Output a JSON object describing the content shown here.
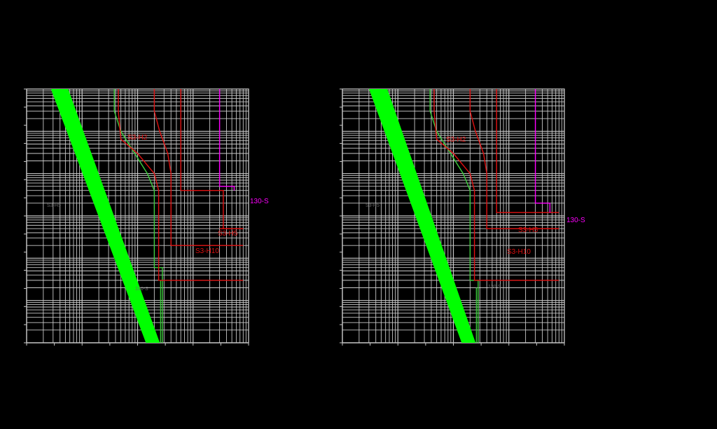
{
  "background": "#000000",
  "grid_color": "#c8c8c8",
  "colors": {
    "band": "#00ff00",
    "green_curve": "#3ccc3c",
    "red_curve": "#e01010",
    "magenta_curve": "#ff00ff"
  },
  "chart_data": [
    {
      "type": "line",
      "title": "",
      "xlabel": "",
      "ylabel": "",
      "x_scale": "log",
      "y_scale": "log",
      "xlim": [
        1,
        10000
      ],
      "ylim": [
        0.01,
        10000
      ],
      "grid": true,
      "band": {
        "name": "",
        "upper": [
          [
            2.74,
            10000
          ],
          [
            141,
            0.01
          ]
        ],
        "lower": [
          [
            5.62,
            10000
          ],
          [
            251,
            0.01
          ]
        ]
      },
      "series": [
        {
          "name": "",
          "color": "green",
          "points": [
            [
              38,
              10000
            ],
            [
              38,
              3000
            ],
            [
              50,
              1000
            ],
            [
              150,
              100
            ],
            [
              200,
              40
            ],
            [
              200,
              0.6
            ],
            [
              280,
              0.6
            ],
            [
              280,
              0.01
            ]
          ]
        },
        {
          "name": "",
          "color": "green",
          "points": [
            [
              260,
              0.3
            ],
            [
              260,
              0.01
            ]
          ]
        },
        {
          "name": "S3-H2",
          "color": "red",
          "points": [
            [
              45,
              10000
            ],
            [
              45,
              3000
            ],
            [
              50,
              650
            ],
            [
              100,
              300
            ],
            [
              200,
              100
            ],
            [
              240,
              40
            ],
            [
              240,
              0.3
            ],
            [
              8000,
              0.3
            ]
          ]
        },
        {
          "name": "",
          "color": "red",
          "points": [
            [
              200,
              10000
            ],
            [
              200,
              3000
            ],
            [
              250,
              1000
            ],
            [
              350,
              300
            ],
            [
              400,
              100
            ],
            [
              400,
              2
            ],
            [
              8000,
              2
            ]
          ]
        },
        {
          "name": "S3-H10",
          "color": "red",
          "points": [
            [
              600,
              10000
            ],
            [
              600,
              40
            ],
            [
              3500,
              40
            ],
            [
              3500,
              5
            ],
            [
              8000,
              5
            ]
          ]
        },
        {
          "name": "S3-H5",
          "color": "red",
          "points": [
            [
              3000,
              5
            ],
            [
              8000,
              5
            ]
          ]
        },
        {
          "name": "130-S",
          "color": "magenta",
          "points": [
            [
              3000,
              10000
            ],
            [
              3000,
              50
            ],
            [
              5500,
              50
            ],
            [
              5500,
              40
            ]
          ]
        }
      ],
      "labels": {
        "s3h2": "S3-H2",
        "s3h5": "S3-H5",
        "s3h10": "S3-H10",
        "m130s": "130-S"
      },
      "faint_labels": [
        "S3-H5",
        "130-S"
      ]
    },
    {
      "type": "line",
      "title": "",
      "xlabel": "",
      "ylabel": "",
      "x_scale": "log",
      "y_scale": "log",
      "xlim": [
        1,
        10000
      ],
      "ylim": [
        0.01,
        10000
      ],
      "grid": true,
      "band": {
        "name": "",
        "upper": [
          [
            3.02,
            10000
          ],
          [
            141,
            0.01
          ]
        ],
        "lower": [
          [
            6.46,
            10000
          ],
          [
            251,
            0.01
          ]
        ]
      },
      "series": [
        {
          "name": "",
          "color": "green",
          "points": [
            [
              38,
              10000
            ],
            [
              38,
              3000
            ],
            [
              50,
              1000
            ],
            [
              150,
              100
            ],
            [
              200,
              40
            ],
            [
              200,
              0.3
            ],
            [
              280,
              0.3
            ],
            [
              280,
              0.01
            ]
          ]
        },
        {
          "name": "",
          "color": "green",
          "points": [
            [
              260,
              0.2
            ],
            [
              260,
              0.01
            ]
          ]
        },
        {
          "name": "S3-H2",
          "color": "red",
          "points": [
            [
              45,
              10000
            ],
            [
              45,
              3000
            ],
            [
              50,
              650
            ],
            [
              100,
              300
            ],
            [
              200,
              100
            ],
            [
              240,
              40
            ],
            [
              240,
              0.3
            ],
            [
              8000,
              0.3
            ]
          ]
        },
        {
          "name": "",
          "color": "red",
          "points": [
            [
              200,
              10000
            ],
            [
              200,
              3000
            ],
            [
              250,
              1000
            ],
            [
              350,
              300
            ],
            [
              400,
              100
            ],
            [
              400,
              5
            ],
            [
              8000,
              5
            ]
          ]
        },
        {
          "name": "S3-H10",
          "color": "red",
          "points": [
            [
              600,
              10000
            ],
            [
              600,
              12
            ],
            [
              8000,
              12
            ]
          ]
        },
        {
          "name": "S3-H5",
          "color": "red",
          "points": [
            [
              3000,
              5
            ],
            [
              8000,
              5
            ]
          ]
        },
        {
          "name": "130-S",
          "color": "magenta",
          "points": [
            [
              3000,
              10000
            ],
            [
              3000,
              20
            ],
            [
              5500,
              20
            ],
            [
              5500,
              12
            ]
          ]
        }
      ],
      "labels": {
        "s3h2": "S3-H2",
        "s3h5": "S3-H5",
        "s3h10": "S3-H10",
        "m130s": "130-S"
      },
      "faint_labels": [
        "S3-H5",
        "130-S"
      ]
    }
  ]
}
